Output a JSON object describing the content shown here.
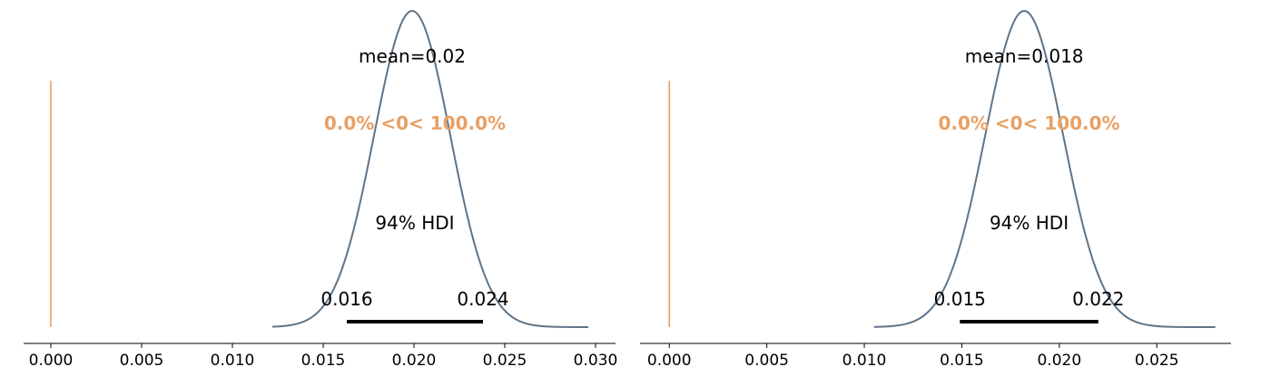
{
  "chart_data": [
    {
      "type": "line",
      "title": "",
      "xlabel": "",
      "ylabel": "",
      "xlim": [
        -0.0015,
        0.0312
      ],
      "xticks": [
        0.0,
        0.005,
        0.01,
        0.015,
        0.02,
        0.025,
        0.03
      ],
      "xtick_labels": [
        "0.000",
        "0.005",
        "0.010",
        "0.015",
        "0.020",
        "0.025",
        "0.030"
      ],
      "grid": false,
      "density": {
        "mean": 0.0199,
        "sd": 0.0021,
        "x_range": [
          0.0122,
          0.0296
        ]
      },
      "mean_label": "mean=0.02",
      "ref_val": 0,
      "ref_label": "0.0% <0< 100.0%",
      "hdi_label": "94% HDI",
      "hdi": [
        0.0163,
        0.0238
      ],
      "hdi_low_label": "0.016",
      "hdi_high_label": "0.024"
    },
    {
      "type": "line",
      "title": "",
      "xlabel": "",
      "ylabel": "",
      "xlim": [
        -0.0015,
        0.0289
      ],
      "xticks": [
        0.0,
        0.005,
        0.01,
        0.015,
        0.02,
        0.025
      ],
      "xtick_labels": [
        "0.000",
        "0.005",
        "0.010",
        "0.015",
        "0.020",
        "0.025"
      ],
      "grid": false,
      "density": {
        "mean": 0.0182,
        "sd": 0.002,
        "x_range": [
          0.0105,
          0.028
        ]
      },
      "mean_label": "mean=0.018",
      "ref_val": 0,
      "ref_label": "0.0% <0< 100.0%",
      "hdi_label": "94% HDI",
      "hdi": [
        0.0149,
        0.022
      ],
      "hdi_low_label": "0.015",
      "hdi_high_label": "0.022"
    }
  ],
  "colors": {
    "density": "#5f7488",
    "ref_line": "#e89a5c",
    "ref_text": "#e8a064",
    "hdi_bar": "#000000",
    "text": "#000000",
    "axis": "#000000"
  }
}
